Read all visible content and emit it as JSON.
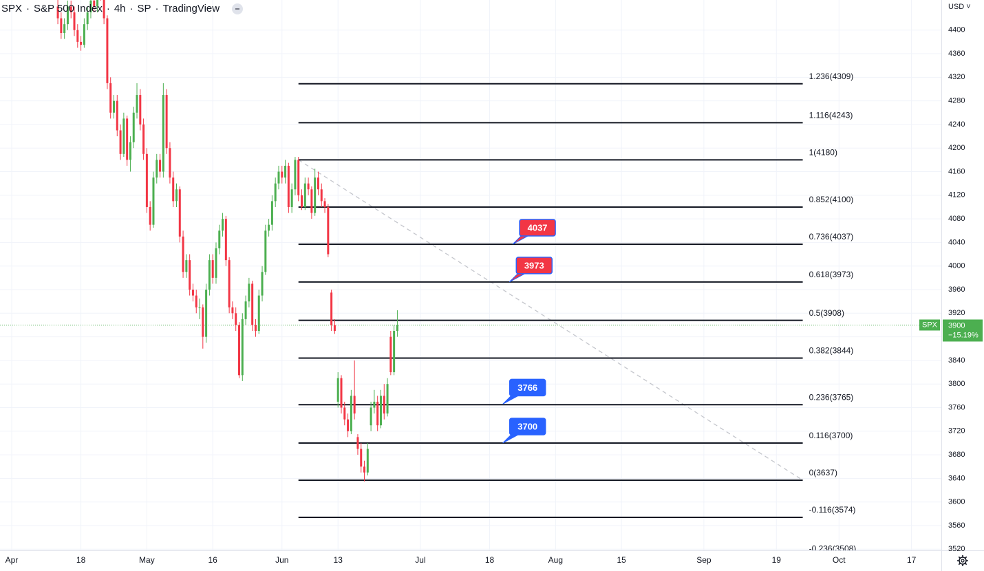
{
  "chart_data": {
    "type": "candlestick",
    "header": {
      "symbol": "SPX",
      "name": "S&P 500 Index",
      "interval": "4h",
      "exchange": "SP",
      "source": "TradingView"
    },
    "currency": "USD",
    "up_color": "#4caf50",
    "down_color": "#f23645",
    "grid": true,
    "xlim": [
      -3.55,
      282.05
    ],
    "ylim": [
      3518,
      4451
    ],
    "xticks": [
      {
        "value": 0,
        "label": "Apr"
      },
      {
        "value": 21,
        "label": "18"
      },
      {
        "value": 41,
        "label": "May"
      },
      {
        "value": 61,
        "label": "16"
      },
      {
        "value": 82,
        "label": "Jun"
      },
      {
        "value": 99,
        "label": "13"
      },
      {
        "value": 124,
        "label": "Jul"
      },
      {
        "value": 145,
        "label": "18"
      },
      {
        "value": 165,
        "label": "Aug"
      },
      {
        "value": 185,
        "label": "15"
      },
      {
        "value": 210,
        "label": "Sep"
      },
      {
        "value": 232,
        "label": "19"
      },
      {
        "value": 251,
        "label": "Oct"
      },
      {
        "value": 273,
        "label": "17"
      }
    ],
    "yticks": [
      3520,
      3560,
      3600,
      3640,
      3680,
      3720,
      3760,
      3800,
      3840,
      3880,
      3920,
      3960,
      4000,
      4040,
      4080,
      4120,
      4160,
      4200,
      4240,
      4280,
      4320,
      4360,
      4400
    ],
    "x": [
      14,
      15,
      16,
      17,
      18,
      19,
      20,
      21,
      22,
      23,
      24,
      25,
      26,
      27,
      28,
      29,
      30,
      31,
      32,
      33,
      34,
      35,
      36,
      37,
      38,
      39,
      40,
      41,
      42,
      43,
      44,
      45,
      46,
      47,
      48,
      49,
      50,
      51,
      52,
      53,
      54,
      55,
      56,
      57,
      58,
      59,
      60,
      61,
      62,
      63,
      64,
      65,
      66,
      67,
      68,
      69,
      70,
      71,
      72,
      73,
      74,
      75,
      76,
      77,
      78,
      79,
      80,
      81,
      82,
      83,
      84,
      85,
      86,
      87,
      88,
      89,
      90,
      91,
      92,
      93,
      94,
      95,
      96,
      97,
      98,
      99,
      100,
      101,
      102,
      103,
      104,
      105,
      106,
      107,
      108,
      109,
      110,
      111,
      112,
      113,
      114,
      115,
      116,
      117
    ],
    "ohlc": [
      [
        4440,
        4455,
        4410,
        4420
      ],
      [
        4420,
        4430,
        4385,
        4395
      ],
      [
        4395,
        4420,
        4385,
        4410
      ],
      [
        4410,
        4450,
        4400,
        4440
      ],
      [
        4440,
        4450,
        4420,
        4430
      ],
      [
        4430,
        4440,
        4390,
        4400
      ],
      [
        4400,
        4410,
        4370,
        4380
      ],
      [
        4380,
        4390,
        4365,
        4375
      ],
      [
        4375,
        4420,
        4370,
        4410
      ],
      [
        4410,
        4440,
        4400,
        4430
      ],
      [
        4430,
        4460,
        4420,
        4450
      ],
      [
        4450,
        4460,
        4430,
        4440
      ],
      [
        4440,
        4480,
        4430,
        4470
      ],
      [
        4470,
        4480,
        4450,
        4460
      ],
      [
        4460,
        4470,
        4410,
        4420
      ],
      [
        4420,
        4425,
        4300,
        4310
      ],
      [
        4310,
        4320,
        4250,
        4260
      ],
      [
        4260,
        4290,
        4250,
        4280
      ],
      [
        4280,
        4290,
        4220,
        4230
      ],
      [
        4230,
        4240,
        4180,
        4190
      ],
      [
        4190,
        4260,
        4185,
        4250
      ],
      [
        4250,
        4255,
        4170,
        4180
      ],
      [
        4180,
        4220,
        4160,
        4210
      ],
      [
        4210,
        4270,
        4200,
        4260
      ],
      [
        4260,
        4310,
        4250,
        4290
      ],
      [
        4290,
        4300,
        4230,
        4240
      ],
      [
        4240,
        4250,
        4180,
        4190
      ],
      [
        4190,
        4200,
        4090,
        4100
      ],
      [
        4100,
        4110,
        4060,
        4070
      ],
      [
        4070,
        4160,
        4065,
        4150
      ],
      [
        4150,
        4190,
        4140,
        4180
      ],
      [
        4180,
        4190,
        4150,
        4160
      ],
      [
        4160,
        4310,
        4150,
        4290
      ],
      [
        4290,
        4300,
        4190,
        4200
      ],
      [
        4200,
        4210,
        4140,
        4150
      ],
      [
        4150,
        4160,
        4100,
        4110
      ],
      [
        4110,
        4140,
        4100,
        4130
      ],
      [
        4130,
        4135,
        4040,
        4050
      ],
      [
        4050,
        4060,
        3980,
        3990
      ],
      [
        3990,
        4020,
        3980,
        4010
      ],
      [
        4010,
        4020,
        3950,
        3960
      ],
      [
        3960,
        3970,
        3940,
        3950
      ],
      [
        3950,
        3960,
        3920,
        3930
      ],
      [
        3930,
        3945,
        3910,
        3930
      ],
      [
        3930,
        3935,
        3860,
        3880
      ],
      [
        3880,
        3970,
        3870,
        3960
      ],
      [
        3960,
        4020,
        3950,
        4010
      ],
      [
        4010,
        4020,
        3970,
        3980
      ],
      [
        3980,
        4040,
        3970,
        4030
      ],
      [
        4030,
        4070,
        4020,
        4060
      ],
      [
        4060,
        4090,
        4050,
        4080
      ],
      [
        4080,
        4085,
        4000,
        4010
      ],
      [
        4010,
        4015,
        3920,
        3930
      ],
      [
        3930,
        3940,
        3910,
        3920
      ],
      [
        3920,
        3930,
        3890,
        3900
      ],
      [
        3900,
        3905,
        3810,
        3815
      ],
      [
        3815,
        3920,
        3805,
        3910
      ],
      [
        3910,
        3950,
        3900,
        3940
      ],
      [
        3940,
        3980,
        3930,
        3970
      ],
      [
        3970,
        3975,
        3890,
        3900
      ],
      [
        3900,
        3910,
        3880,
        3890
      ],
      [
        3890,
        3960,
        3885,
        3950
      ],
      [
        3950,
        4000,
        3940,
        3990
      ],
      [
        3990,
        4070,
        3985,
        4060
      ],
      [
        4060,
        4080,
        4050,
        4070
      ],
      [
        4070,
        4120,
        4060,
        4110
      ],
      [
        4110,
        4150,
        4100,
        4140
      ],
      [
        4140,
        4170,
        4130,
        4160
      ],
      [
        4160,
        4170,
        4140,
        4150
      ],
      [
        4150,
        4180,
        4140,
        4170
      ],
      [
        4170,
        4175,
        4090,
        4100
      ],
      [
        4100,
        4140,
        4090,
        4130
      ],
      [
        4130,
        4185,
        4120,
        4180
      ],
      [
        4180,
        4185,
        4110,
        4120
      ],
      [
        4120,
        4130,
        4095,
        4100
      ],
      [
        4100,
        4150,
        4095,
        4140
      ],
      [
        4140,
        4150,
        4120,
        4130
      ],
      [
        4130,
        4135,
        4080,
        4090
      ],
      [
        4090,
        4165,
        4085,
        4150
      ],
      [
        4150,
        4160,
        4120,
        4130
      ],
      [
        4130,
        4140,
        4100,
        4110
      ],
      [
        4110,
        4115,
        4090,
        4100
      ],
      [
        4100,
        4105,
        4015,
        4020
      ],
      [
        3955,
        3960,
        3890,
        3900
      ],
      [
        3900,
        3910,
        3885,
        3890
      ],
      [
        3770,
        3820,
        3760,
        3810
      ],
      [
        3810,
        3815,
        3750,
        3760
      ],
      [
        3760,
        3770,
        3730,
        3740
      ],
      [
        3740,
        3750,
        3710,
        3720
      ],
      [
        3720,
        3790,
        3715,
        3780
      ],
      [
        3780,
        3840,
        3740,
        3750
      ],
      [
        3710,
        3715,
        3680,
        3690
      ],
      [
        3690,
        3700,
        3650,
        3660
      ],
      [
        3660,
        3670,
        3635,
        3650
      ],
      [
        3650,
        3700,
        3645,
        3690
      ],
      [
        3730,
        3770,
        3720,
        3760
      ],
      [
        3760,
        3790,
        3750,
        3770
      ],
      [
        3770,
        3780,
        3720,
        3730
      ],
      [
        3730,
        3790,
        3725,
        3780
      ],
      [
        3780,
        3800,
        3740,
        3750
      ],
      [
        3750,
        3810,
        3745,
        3800
      ],
      [
        3880,
        3890,
        3815,
        3820
      ],
      [
        3820,
        3900,
        3815,
        3890
      ],
      [
        3890,
        3925,
        3880,
        3900
      ]
    ],
    "fib": {
      "x": [
        87,
        240
      ],
      "color": "#131722",
      "levels": [
        {
          "value": 4309,
          "label": "1.236(4309)"
        },
        {
          "value": 4243,
          "label": "1.116(4243)"
        },
        {
          "value": 4180,
          "label": "1(4180)"
        },
        {
          "value": 4100,
          "label": "0.852(4100)"
        },
        {
          "value": 4037,
          "label": "0.736(4037)"
        },
        {
          "value": 3973,
          "label": "0.618(3973)"
        },
        {
          "value": 3908,
          "label": "0.5(3908)"
        },
        {
          "value": 3844,
          "label": "0.382(3844)"
        },
        {
          "value": 3765,
          "label": "0.236(3765)"
        },
        {
          "value": 3700,
          "label": "0.116(3700)"
        },
        {
          "value": 3637,
          "label": "0(3637)"
        },
        {
          "value": 3574,
          "label": "-0.116(3574)"
        },
        {
          "value": 3508,
          "label": "-0.236(3508)"
        }
      ]
    },
    "trendline": {
      "x": [
        87,
        240
      ],
      "y": [
        4180,
        3637
      ],
      "color": "#c4c6cc"
    },
    "callouts": [
      {
        "x": 152,
        "value": 4037,
        "color": "#f23645"
      },
      {
        "x": 151,
        "value": 3973,
        "color": "#f23645"
      },
      {
        "x": 149,
        "value": 3766,
        "color": "#2962ff"
      },
      {
        "x": 149,
        "value": 3700,
        "color": "#2962ff"
      }
    ],
    "last_price": {
      "symbol": "SPX",
      "value": 3900,
      "change": -15.19,
      "change_label": "−15.19%",
      "color": "#4caf50"
    }
  }
}
